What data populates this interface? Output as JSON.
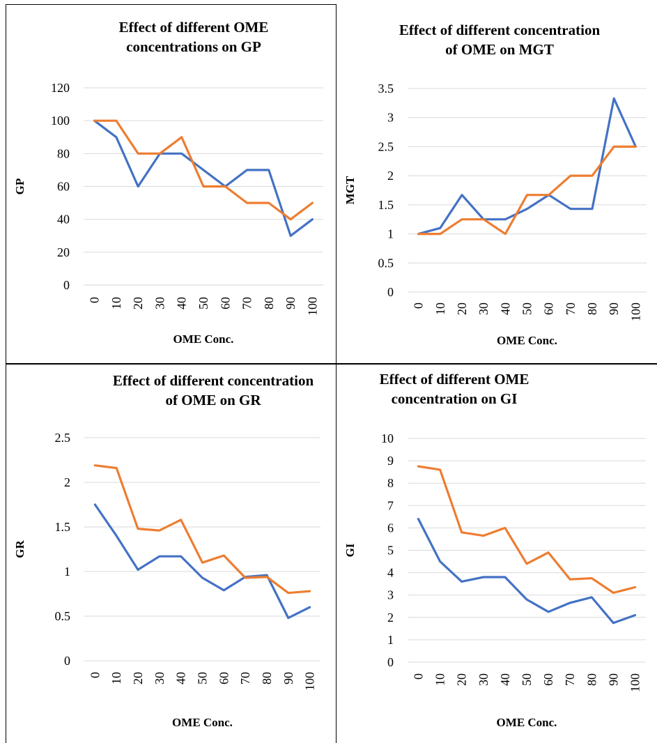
{
  "colors": {
    "series_a": "#4472C4",
    "series_b": "#ED7D31",
    "grid": "#d9d9d9"
  },
  "chart_data": [
    {
      "type": "line",
      "title_lines": [
        "Effect of different OME",
        "concentrations on GP"
      ],
      "xlabel": "OME Conc.",
      "ylabel": "GP",
      "x": [
        "0",
        "10",
        "20",
        "30",
        "40",
        "50",
        "60",
        "70",
        "80",
        "90",
        "100"
      ],
      "ylim": [
        0,
        120
      ],
      "yticks": [
        0,
        20,
        40,
        60,
        80,
        100,
        120
      ],
      "grid": true,
      "series": [
        {
          "values": [
            100,
            90,
            60,
            80,
            80,
            70,
            60,
            70,
            70,
            30,
            40
          ]
        },
        {
          "values": [
            100,
            100,
            80,
            80,
            90,
            60,
            60,
            50,
            50,
            40,
            50
          ]
        }
      ]
    },
    {
      "type": "line",
      "title_lines": [
        "Effect of different concentration",
        "of OME on MGT"
      ],
      "xlabel": "OME Conc.",
      "ylabel": "MGT",
      "x": [
        "0",
        "10",
        "20",
        "30",
        "40",
        "50",
        "60",
        "70",
        "80",
        "90",
        "100"
      ],
      "ylim": [
        0,
        3.5
      ],
      "yticks": [
        0,
        0.5,
        1,
        1.5,
        2,
        2.5,
        3,
        3.5
      ],
      "grid": true,
      "series": [
        {
          "values": [
            1,
            1.1,
            1.67,
            1.25,
            1.25,
            1.43,
            1.67,
            1.43,
            1.43,
            3.33,
            2.5
          ]
        },
        {
          "values": [
            1,
            1,
            1.25,
            1.25,
            1,
            1.67,
            1.67,
            2,
            2,
            2.5,
            2.5
          ]
        }
      ]
    },
    {
      "type": "line",
      "title_lines": [
        "Effect of different concentration",
        "of OME on GR"
      ],
      "xlabel": "OME Conc.",
      "ylabel": "GR",
      "x": [
        "0",
        "10",
        "20",
        "30",
        "40",
        "50",
        "60",
        "70",
        "80",
        "90",
        "100"
      ],
      "ylim": [
        0,
        2.5
      ],
      "yticks": [
        0,
        0.5,
        1,
        1.5,
        2,
        2.5
      ],
      "grid": true,
      "series": [
        {
          "values": [
            1.75,
            1.4,
            1.02,
            1.17,
            1.17,
            0.93,
            0.79,
            0.94,
            0.96,
            0.48,
            0.6
          ]
        },
        {
          "values": [
            2.19,
            2.16,
            1.48,
            1.46,
            1.58,
            1.1,
            1.18,
            0.93,
            0.94,
            0.76,
            0.78
          ]
        }
      ]
    },
    {
      "type": "line",
      "title_lines": [
        "Effect of different OME",
        "concentration on GI"
      ],
      "xlabel": "OME Conc.",
      "ylabel": "GI",
      "x": [
        "0",
        "10",
        "20",
        "30",
        "40",
        "50",
        "60",
        "70",
        "80",
        "90",
        "100"
      ],
      "ylim": [
        0,
        10
      ],
      "yticks": [
        0,
        1,
        2,
        3,
        4,
        5,
        6,
        7,
        8,
        9,
        10
      ],
      "grid": true,
      "series": [
        {
          "values": [
            6.4,
            4.5,
            3.6,
            3.8,
            3.8,
            2.8,
            2.25,
            2.65,
            2.9,
            1.75,
            2.1
          ]
        },
        {
          "values": [
            8.75,
            8.6,
            5.8,
            5.65,
            6.0,
            4.4,
            4.9,
            3.7,
            3.75,
            3.1,
            3.35
          ]
        }
      ]
    }
  ]
}
